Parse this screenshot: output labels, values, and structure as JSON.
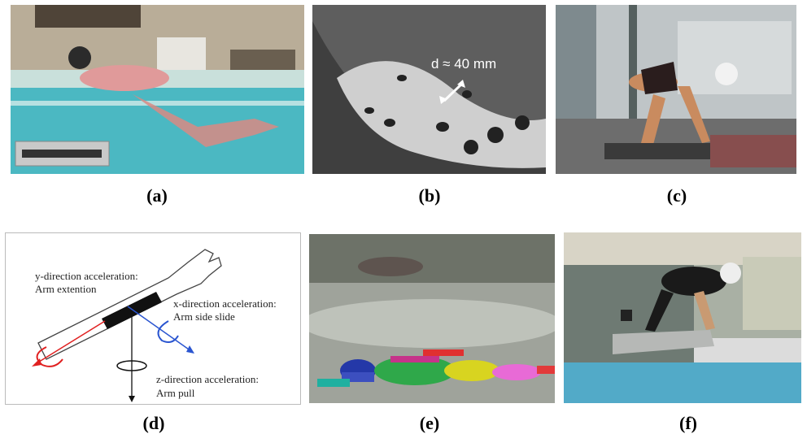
{
  "captions": {
    "a": "(a)",
    "b": "(b)",
    "c": "(c)",
    "d": "(d)",
    "e": "(e)",
    "f": "(f)"
  },
  "panel_b": {
    "measurement": "d ≈ 40 mm"
  },
  "panel_d": {
    "y_line1": "y-direction acceleration:",
    "y_line2": "Arm extention",
    "x_line1": "x-direction acceleration:",
    "x_line2": "Arm side slide",
    "z_line1": "z-direction acceleration:",
    "z_line2": "Arm pull"
  },
  "colors": {
    "red": "#e02020",
    "blue": "#2a55d0",
    "pool": "#4bb8c2"
  }
}
